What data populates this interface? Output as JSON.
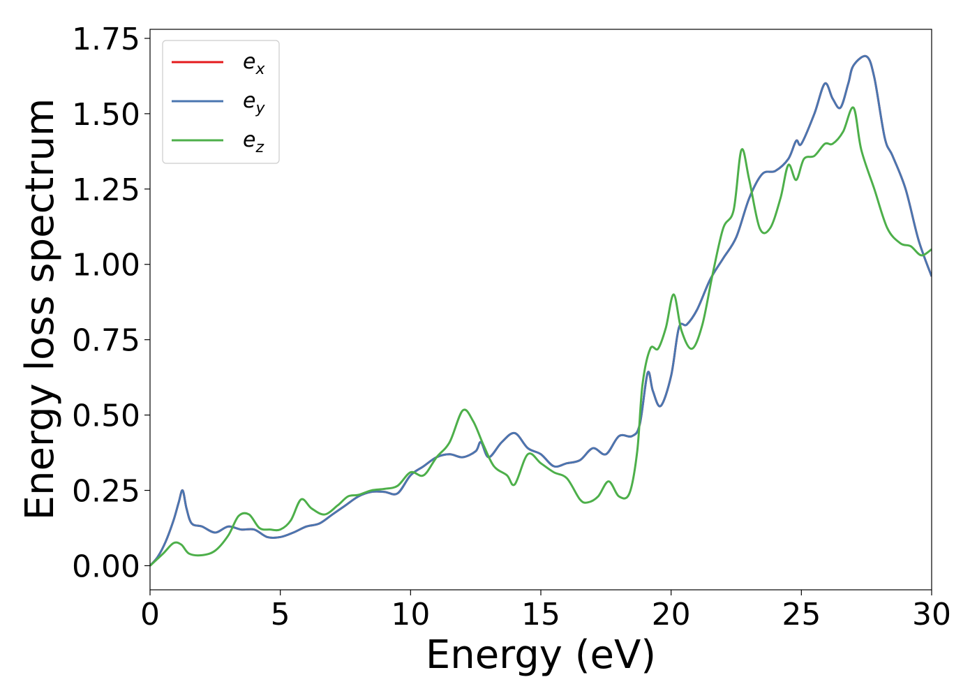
{
  "chart_data": {
    "type": "line",
    "xlabel": "Energy (eV)",
    "ylabel": "Energy loss spectrum",
    "xlim": [
      0,
      30
    ],
    "ylim": [
      -0.08,
      1.78
    ],
    "xticks": [
      "0",
      "5",
      "10",
      "15",
      "20",
      "25",
      "30"
    ],
    "xtick_values": [
      0,
      5,
      10,
      15,
      20,
      25,
      30
    ],
    "yticks": [
      "0.00",
      "0.25",
      "0.50",
      "0.75",
      "1.00",
      "1.25",
      "1.50",
      "1.75"
    ],
    "ytick_values": [
      0,
      0.25,
      0.5,
      0.75,
      1.0,
      1.25,
      1.5,
      1.75
    ],
    "grid": false,
    "legend_position": "upper-left",
    "series": [
      {
        "name": "e_x",
        "legend_base": "e",
        "legend_sub": "x",
        "color": "#e41a1c",
        "x": [
          0,
          0.3,
          0.6,
          0.9,
          1.1,
          1.25,
          1.4,
          1.6,
          2.0,
          2.5,
          3.0,
          3.5,
          4.0,
          4.5,
          5.0,
          5.5,
          6.0,
          6.5,
          7.0,
          7.5,
          8.0,
          8.5,
          9.0,
          9.5,
          10.0,
          10.5,
          11.0,
          11.5,
          12.0,
          12.5,
          12.7,
          13.0,
          13.5,
          14.0,
          14.5,
          15.0,
          15.5,
          16.0,
          16.5,
          17.0,
          17.5,
          18.0,
          18.5,
          18.8,
          19.1,
          19.3,
          19.6,
          20.0,
          20.3,
          20.6,
          21.0,
          21.5,
          22.0,
          22.5,
          23.0,
          23.5,
          24.0,
          24.5,
          24.8,
          25.0,
          25.5,
          25.9,
          26.2,
          26.5,
          26.8,
          27.0,
          27.5,
          27.8,
          28.2,
          28.5,
          29.0,
          29.5,
          30.0
        ],
        "y": [
          0.0,
          0.03,
          0.08,
          0.15,
          0.21,
          0.25,
          0.19,
          0.14,
          0.13,
          0.11,
          0.13,
          0.12,
          0.12,
          0.095,
          0.095,
          0.11,
          0.13,
          0.14,
          0.17,
          0.2,
          0.23,
          0.245,
          0.245,
          0.24,
          0.3,
          0.33,
          0.36,
          0.37,
          0.36,
          0.38,
          0.41,
          0.36,
          0.41,
          0.44,
          0.39,
          0.37,
          0.33,
          0.34,
          0.35,
          0.39,
          0.37,
          0.43,
          0.43,
          0.47,
          0.64,
          0.58,
          0.53,
          0.63,
          0.79,
          0.8,
          0.85,
          0.95,
          1.02,
          1.09,
          1.22,
          1.3,
          1.31,
          1.35,
          1.41,
          1.4,
          1.5,
          1.6,
          1.55,
          1.52,
          1.6,
          1.66,
          1.69,
          1.62,
          1.42,
          1.36,
          1.25,
          1.08,
          0.96
        ]
      },
      {
        "name": "e_y",
        "legend_base": "e",
        "legend_sub": "y",
        "color": "#4a76b0",
        "x": [
          0,
          0.3,
          0.6,
          0.9,
          1.1,
          1.25,
          1.4,
          1.6,
          2.0,
          2.5,
          3.0,
          3.5,
          4.0,
          4.5,
          5.0,
          5.5,
          6.0,
          6.5,
          7.0,
          7.5,
          8.0,
          8.5,
          9.0,
          9.5,
          10.0,
          10.5,
          11.0,
          11.5,
          12.0,
          12.5,
          12.7,
          13.0,
          13.5,
          14.0,
          14.5,
          15.0,
          15.5,
          16.0,
          16.5,
          17.0,
          17.5,
          18.0,
          18.5,
          18.8,
          19.1,
          19.3,
          19.6,
          20.0,
          20.3,
          20.6,
          21.0,
          21.5,
          22.0,
          22.5,
          23.0,
          23.5,
          24.0,
          24.5,
          24.8,
          25.0,
          25.5,
          25.9,
          26.2,
          26.5,
          26.8,
          27.0,
          27.5,
          27.8,
          28.2,
          28.5,
          29.0,
          29.5,
          30.0
        ],
        "y": [
          0.0,
          0.03,
          0.08,
          0.15,
          0.21,
          0.25,
          0.19,
          0.14,
          0.13,
          0.11,
          0.13,
          0.12,
          0.12,
          0.095,
          0.095,
          0.11,
          0.13,
          0.14,
          0.17,
          0.2,
          0.23,
          0.245,
          0.245,
          0.24,
          0.3,
          0.33,
          0.36,
          0.37,
          0.36,
          0.38,
          0.41,
          0.36,
          0.41,
          0.44,
          0.39,
          0.37,
          0.33,
          0.34,
          0.35,
          0.39,
          0.37,
          0.43,
          0.43,
          0.47,
          0.64,
          0.58,
          0.53,
          0.63,
          0.79,
          0.8,
          0.85,
          0.95,
          1.02,
          1.09,
          1.22,
          1.3,
          1.31,
          1.35,
          1.41,
          1.4,
          1.5,
          1.6,
          1.55,
          1.52,
          1.6,
          1.66,
          1.69,
          1.62,
          1.42,
          1.36,
          1.25,
          1.08,
          0.96
        ]
      },
      {
        "name": "e_z",
        "legend_base": "e",
        "legend_sub": "z",
        "color": "#4daf4a",
        "x": [
          0,
          0.5,
          0.9,
          1.2,
          1.5,
          2.0,
          2.5,
          3.0,
          3.4,
          3.8,
          4.2,
          4.6,
          5.0,
          5.4,
          5.8,
          6.2,
          6.7,
          7.2,
          7.6,
          8.0,
          8.5,
          9.0,
          9.5,
          10.0,
          10.5,
          11.0,
          11.5,
          12.0,
          12.4,
          12.8,
          13.2,
          13.7,
          14.0,
          14.5,
          15.0,
          15.5,
          16.0,
          16.5,
          16.8,
          17.2,
          17.6,
          18.0,
          18.4,
          18.7,
          18.9,
          19.2,
          19.5,
          19.8,
          20.1,
          20.4,
          20.8,
          21.2,
          21.6,
          22.0,
          22.4,
          22.7,
          23.0,
          23.4,
          23.8,
          24.2,
          24.5,
          24.8,
          25.1,
          25.5,
          25.9,
          26.2,
          26.6,
          27.0,
          27.3,
          27.8,
          28.3,
          28.8,
          29.2,
          29.6,
          30.0
        ],
        "y": [
          0.0,
          0.04,
          0.075,
          0.07,
          0.04,
          0.035,
          0.05,
          0.1,
          0.165,
          0.17,
          0.125,
          0.12,
          0.12,
          0.15,
          0.22,
          0.19,
          0.17,
          0.2,
          0.23,
          0.235,
          0.25,
          0.255,
          0.265,
          0.31,
          0.3,
          0.36,
          0.41,
          0.515,
          0.48,
          0.4,
          0.33,
          0.3,
          0.27,
          0.37,
          0.34,
          0.31,
          0.29,
          0.22,
          0.21,
          0.23,
          0.28,
          0.23,
          0.24,
          0.38,
          0.6,
          0.72,
          0.72,
          0.79,
          0.9,
          0.78,
          0.72,
          0.8,
          0.97,
          1.12,
          1.18,
          1.38,
          1.28,
          1.12,
          1.12,
          1.22,
          1.33,
          1.28,
          1.35,
          1.36,
          1.4,
          1.4,
          1.44,
          1.52,
          1.38,
          1.25,
          1.12,
          1.07,
          1.06,
          1.03,
          1.05
        ]
      }
    ]
  }
}
